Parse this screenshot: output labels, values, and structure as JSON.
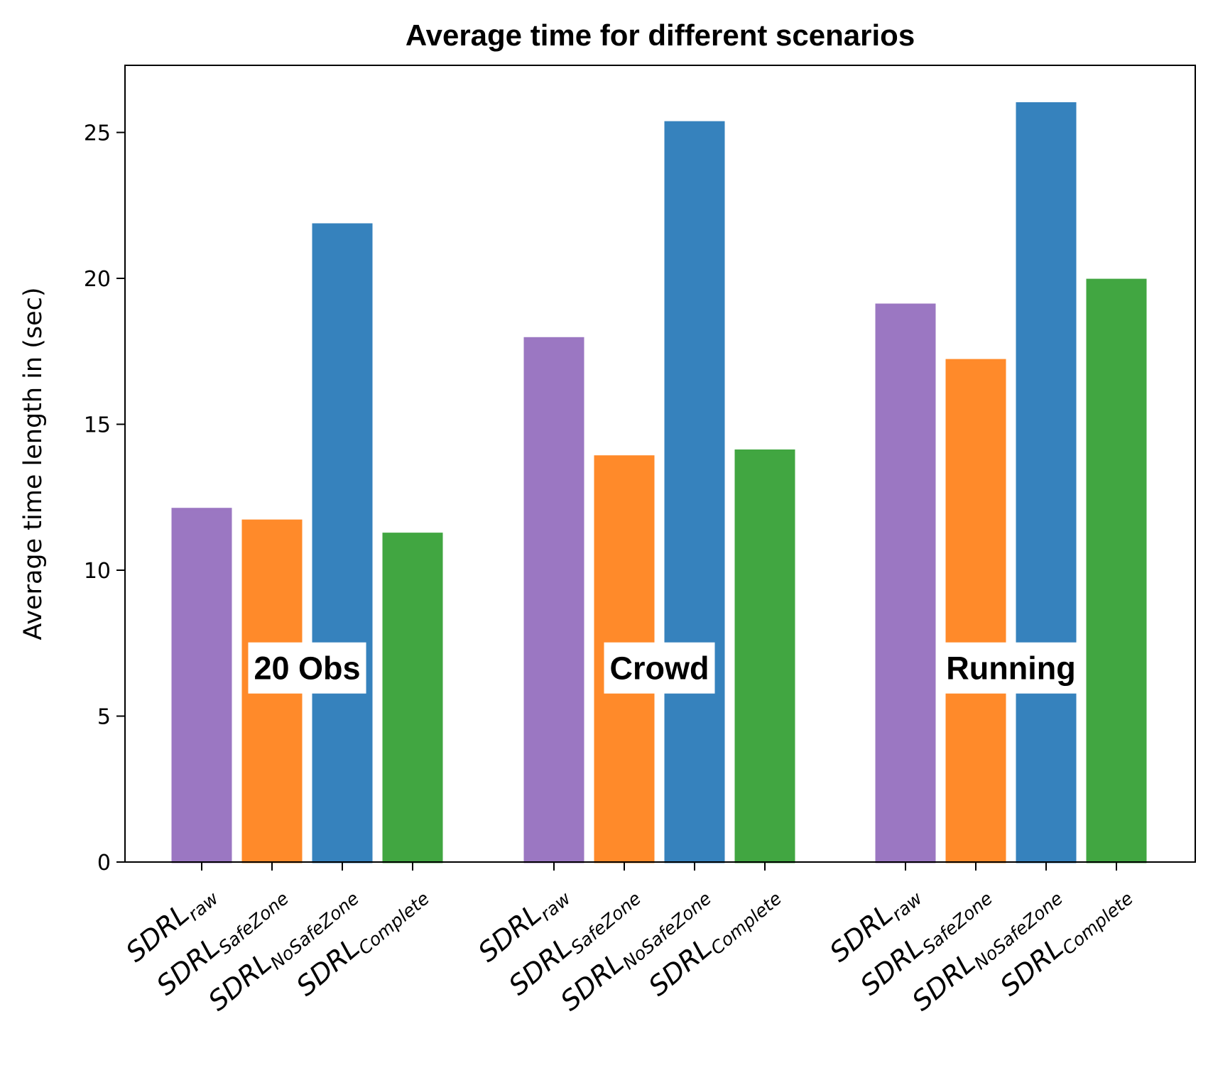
{
  "chart_data": {
    "type": "bar",
    "title": "Average time for different scenarios",
    "xlabel": "",
    "ylabel": "Average time length in (sec)",
    "ylim": [
      0,
      27.3
    ],
    "yticks": [
      0,
      5,
      10,
      15,
      20,
      25
    ],
    "grid": false,
    "groups": [
      "20 Obs",
      "Crowd",
      "Running"
    ],
    "categories": [
      {
        "base": "SDRL",
        "sub": "raw"
      },
      {
        "base": "SDRL",
        "sub": "SafeZone"
      },
      {
        "base": "SDRL",
        "sub": "NoSafeZone"
      },
      {
        "base": "SDRL",
        "sub": "Complete"
      }
    ],
    "colors": [
      "#9b77c2",
      "#ff8a2a",
      "#3682bd",
      "#41a641"
    ],
    "values": [
      [
        12.1,
        11.7,
        21.85,
        11.25
      ],
      [
        17.95,
        13.9,
        25.35,
        14.1
      ],
      [
        19.1,
        17.2,
        26.0,
        19.95
      ]
    ]
  }
}
